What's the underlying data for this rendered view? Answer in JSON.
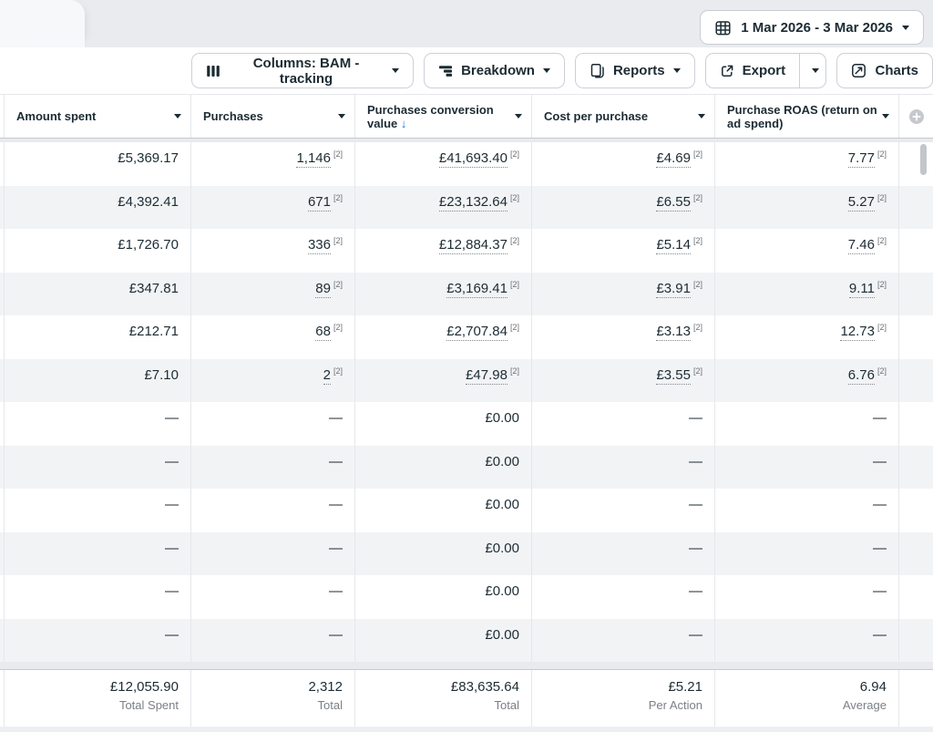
{
  "topbar": {
    "date_range": "1 Mar 2026 - 3 Mar 2026"
  },
  "toolbar": {
    "columns": "Columns: BAM - tracking",
    "breakdown": "Breakdown",
    "reports": "Reports",
    "export": "Export",
    "charts": "Charts"
  },
  "table": {
    "columns": [
      {
        "key": "amount-spent",
        "label": "Amount spent"
      },
      {
        "key": "purchases",
        "label": "Purchases"
      },
      {
        "key": "purchases-conversion-value",
        "label": "Purchases conversion value",
        "sorted": "desc",
        "sort_indicator": "↓"
      },
      {
        "key": "cost-per-purchase",
        "label": "Cost per purchase"
      },
      {
        "key": "purchase-roas",
        "label": "Purchase ROAS (return on ad spend)"
      }
    ],
    "rows": [
      {
        "cells": [
          {
            "text": "£5,369.17"
          },
          {
            "text": "1,146",
            "footnote": "[2]",
            "underline": true
          },
          {
            "text": "£41,693.40",
            "footnote": "[2]",
            "underline": true
          },
          {
            "text": "£4.69",
            "footnote": "[2]",
            "underline": true
          },
          {
            "text": "7.77",
            "footnote": "[2]",
            "underline": true
          }
        ]
      },
      {
        "cells": [
          {
            "text": "£4,392.41"
          },
          {
            "text": "671",
            "footnote": "[2]",
            "underline": true
          },
          {
            "text": "£23,132.64",
            "footnote": "[2]",
            "underline": true
          },
          {
            "text": "£6.55",
            "footnote": "[2]",
            "underline": true
          },
          {
            "text": "5.27",
            "footnote": "[2]",
            "underline": true
          }
        ]
      },
      {
        "cells": [
          {
            "text": "£1,726.70"
          },
          {
            "text": "336",
            "footnote": "[2]",
            "underline": true
          },
          {
            "text": "£12,884.37",
            "footnote": "[2]",
            "underline": true
          },
          {
            "text": "£5.14",
            "footnote": "[2]",
            "underline": true
          },
          {
            "text": "7.46",
            "footnote": "[2]",
            "underline": true
          }
        ]
      },
      {
        "cells": [
          {
            "text": "£347.81"
          },
          {
            "text": "89",
            "footnote": "[2]",
            "underline": true
          },
          {
            "text": "£3,169.41",
            "footnote": "[2]",
            "underline": true
          },
          {
            "text": "£3.91",
            "footnote": "[2]",
            "underline": true
          },
          {
            "text": "9.11",
            "footnote": "[2]",
            "underline": true
          }
        ]
      },
      {
        "cells": [
          {
            "text": "£212.71"
          },
          {
            "text": "68",
            "footnote": "[2]",
            "underline": true
          },
          {
            "text": "£2,707.84",
            "footnote": "[2]",
            "underline": true
          },
          {
            "text": "£3.13",
            "footnote": "[2]",
            "underline": true
          },
          {
            "text": "12.73",
            "footnote": "[2]",
            "underline": true
          }
        ]
      },
      {
        "cells": [
          {
            "text": "£7.10"
          },
          {
            "text": "2",
            "footnote": "[2]",
            "underline": true
          },
          {
            "text": "£47.98",
            "footnote": "[2]",
            "underline": true
          },
          {
            "text": "£3.55",
            "footnote": "[2]",
            "underline": true
          },
          {
            "text": "6.76",
            "footnote": "[2]",
            "underline": true
          }
        ]
      },
      {
        "cells": [
          {
            "text": "—"
          },
          {
            "text": "—"
          },
          {
            "text": "£0.00"
          },
          {
            "text": "—"
          },
          {
            "text": "—"
          }
        ]
      },
      {
        "cells": [
          {
            "text": "—"
          },
          {
            "text": "—"
          },
          {
            "text": "£0.00"
          },
          {
            "text": "—"
          },
          {
            "text": "—"
          }
        ]
      },
      {
        "cells": [
          {
            "text": "—"
          },
          {
            "text": "—"
          },
          {
            "text": "£0.00"
          },
          {
            "text": "—"
          },
          {
            "text": "—"
          }
        ]
      },
      {
        "cells": [
          {
            "text": "—"
          },
          {
            "text": "—"
          },
          {
            "text": "£0.00"
          },
          {
            "text": "—"
          },
          {
            "text": "—"
          }
        ]
      },
      {
        "cells": [
          {
            "text": "—"
          },
          {
            "text": "—"
          },
          {
            "text": "£0.00"
          },
          {
            "text": "—"
          },
          {
            "text": "—"
          }
        ]
      },
      {
        "cells": [
          {
            "text": "—"
          },
          {
            "text": "—"
          },
          {
            "text": "£0.00"
          },
          {
            "text": "—"
          },
          {
            "text": "—"
          }
        ]
      }
    ],
    "totals": [
      {
        "value": "£12,055.90",
        "label": "Total Spent"
      },
      {
        "value": "2,312",
        "label": "Total"
      },
      {
        "value": "£83,635.64",
        "label": "Total"
      },
      {
        "value": "£5.21",
        "label": "Per Action"
      },
      {
        "value": "6.94",
        "label": "Average"
      }
    ]
  },
  "colors": {
    "sort_active": "#1b74e4",
    "row_stripe": "#f2f3f5",
    "text_primary": "#1c2b33"
  }
}
